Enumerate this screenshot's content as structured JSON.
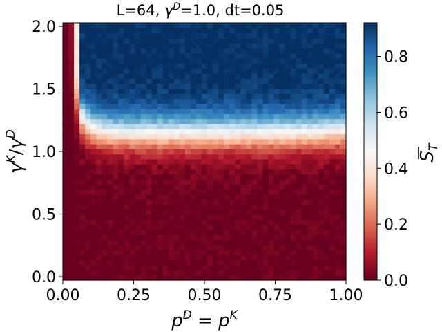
{
  "chart_data": {
    "type": "heatmap",
    "title": {
      "pre": "L=64, ",
      "sym": "γ",
      "sup": "D",
      "post": "=1.0, dt=0.05"
    },
    "xlabel": {
      "a": "p",
      "a_sup": "D",
      "mid": " = ",
      "b": "p",
      "b_sup": "K"
    },
    "ylabel": {
      "a": "γ",
      "a_sup": "K",
      "mid": "/",
      "b": "γ",
      "b_sup": "D"
    },
    "xlim": [
      0.0,
      1.0
    ],
    "ylim": [
      0.0,
      2.0
    ],
    "xticks": [
      "0.00",
      "0.25",
      "0.50",
      "0.75",
      "1.00"
    ],
    "yticks": [
      "0.0",
      "0.5",
      "1.0",
      "1.5",
      "2.0"
    ],
    "grid": "off",
    "colormap": "RdBu",
    "colorbar": {
      "label": {
        "base": "S",
        "sub": "T",
        "overline": true
      },
      "range": [
        0.0,
        0.92
      ],
      "ticks": [
        "0.0",
        "0.2",
        "0.4",
        "0.6",
        "0.8"
      ]
    },
    "grid_size": {
      "nx": 51,
      "ny": 51
    },
    "values_description_trend": {
      "p_zero_column": 0.0,
      "threshold_gamma_ratio": 1.15,
      "transition_width": 0.18,
      "max_value": 0.92
    }
  },
  "colors": {
    "low": "#67001f",
    "mid": "#f7f7f7",
    "high": "#053061"
  }
}
